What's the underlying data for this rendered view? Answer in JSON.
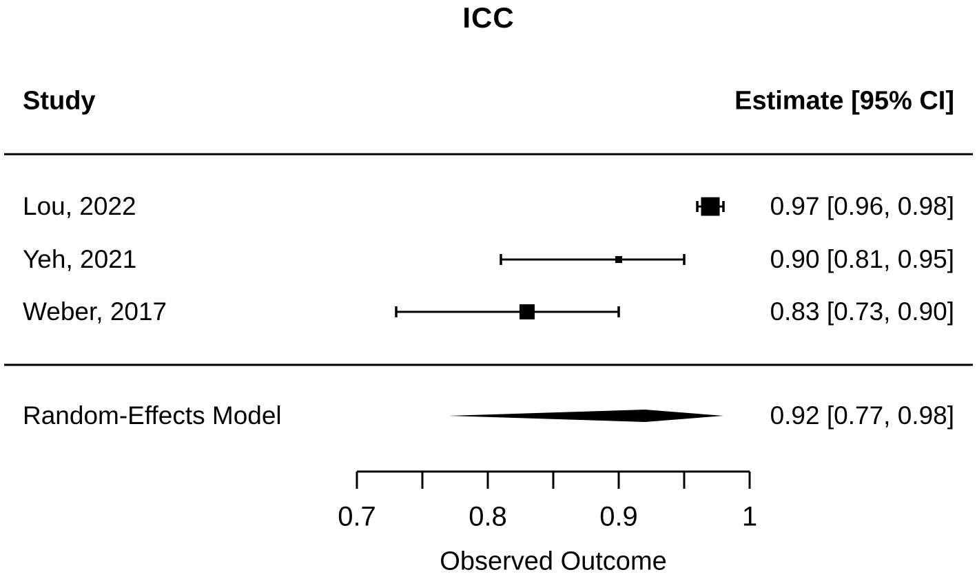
{
  "title": "ICC",
  "columns": {
    "study": "Study",
    "estimate": "Estimate [95% CI]"
  },
  "xlabel": "Observed Outcome",
  "colors": {
    "marker": "#000000",
    "line": "#000000",
    "text": "#000000",
    "background": "#ffffff"
  },
  "chart_data": {
    "type": "forest",
    "title": "ICC",
    "xlabel": "Observed Outcome",
    "xlim": [
      0.7,
      1.0
    ],
    "x_ticks": [
      0.7,
      0.75,
      0.8,
      0.85,
      0.9,
      0.95,
      1.0
    ],
    "x_tick_labels": [
      {
        "value": 0.7,
        "text": "0.7"
      },
      {
        "value": 0.8,
        "text": "0.8"
      },
      {
        "value": 0.9,
        "text": "0.9"
      },
      {
        "value": 1.0,
        "text": "1"
      }
    ],
    "studies": [
      {
        "label": "Lou, 2022",
        "estimate": 0.97,
        "ci_low": 0.96,
        "ci_high": 0.98,
        "estimate_text": "0.97 [0.96, 0.98]",
        "marker_size": 27
      },
      {
        "label": "Yeh, 2021",
        "estimate": 0.9,
        "ci_low": 0.81,
        "ci_high": 0.95,
        "estimate_text": "0.90 [0.81, 0.95]",
        "marker_size": 10
      },
      {
        "label": "Weber, 2017",
        "estimate": 0.83,
        "ci_low": 0.73,
        "ci_high": 0.9,
        "estimate_text": "0.83 [0.73, 0.90]",
        "marker_size": 22
      }
    ],
    "summary": {
      "label": "Random-Effects Model",
      "estimate": 0.92,
      "ci_low": 0.77,
      "ci_high": 0.98,
      "estimate_text": "0.92 [0.77, 0.98]",
      "marker": "diamond"
    }
  }
}
